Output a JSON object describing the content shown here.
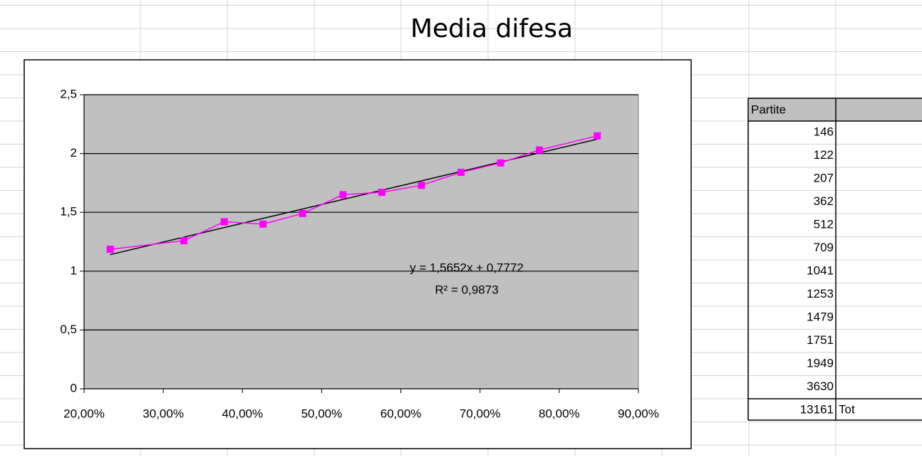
{
  "sheet_title": "Media difesa",
  "chart_data": {
    "type": "scatter",
    "x": [
      0.233,
      0.326,
      0.377,
      0.426,
      0.476,
      0.527,
      0.576,
      0.626,
      0.676,
      0.726,
      0.775,
      0.848
    ],
    "values": [
      1.186,
      1.259,
      1.42,
      1.4,
      1.49,
      1.65,
      1.67,
      1.73,
      1.84,
      1.92,
      2.03,
      2.15
    ],
    "color": "#ff00ff",
    "marker": "square",
    "connect": true,
    "trendline": "linear",
    "trendline_color": "#000000",
    "annotations": [
      "y = 1,5652x + 0,7772",
      "R² = 0,9873"
    ],
    "xlim": [
      0.2,
      0.9
    ],
    "xticks": [
      {
        "value": 0.2,
        "label": "20,00%"
      },
      {
        "value": 0.3,
        "label": "30,00%"
      },
      {
        "value": 0.4,
        "label": "40,00%"
      },
      {
        "value": 0.5,
        "label": "50,00%"
      },
      {
        "value": 0.6,
        "label": "60,00%"
      },
      {
        "value": 0.7,
        "label": "70,00%"
      },
      {
        "value": 0.8,
        "label": "80,00%"
      },
      {
        "value": 0.9,
        "label": "90,00%"
      }
    ],
    "ylim": [
      0,
      2.5
    ],
    "yticks": [
      0,
      {
        "value": 0.5,
        "label": "0,5"
      },
      1,
      {
        "value": 1.5,
        "label": "1,5"
      },
      2,
      {
        "value": 2.5,
        "label": "2,5"
      }
    ],
    "grid": true,
    "plot_background": "#c0c0c0"
  },
  "table": {
    "header": "Partite",
    "rows": [
      146,
      122,
      207,
      362,
      512,
      709,
      1041,
      1253,
      1479,
      1751,
      1949,
      3630
    ],
    "total": 13161,
    "total_label": "Tot"
  }
}
